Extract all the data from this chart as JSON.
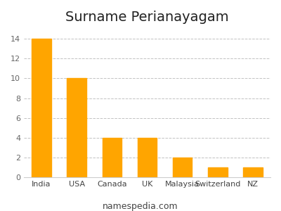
{
  "title": "Surname Perianayagam",
  "categories": [
    "India",
    "USA",
    "Canada",
    "UK",
    "Malaysia",
    "Switzerland",
    "NZ"
  ],
  "values": [
    14,
    10,
    4,
    4,
    2,
    1,
    1
  ],
  "bar_color": "#FFA500",
  "ylim": [
    0,
    15
  ],
  "yticks": [
    0,
    2,
    4,
    6,
    8,
    10,
    12,
    14
  ],
  "grid_color": "#bbbbbb",
  "background_color": "#ffffff",
  "title_fontsize": 14,
  "tick_fontsize": 8,
  "footer_text": "namespedia.com",
  "footer_fontsize": 9,
  "bar_width": 0.55
}
